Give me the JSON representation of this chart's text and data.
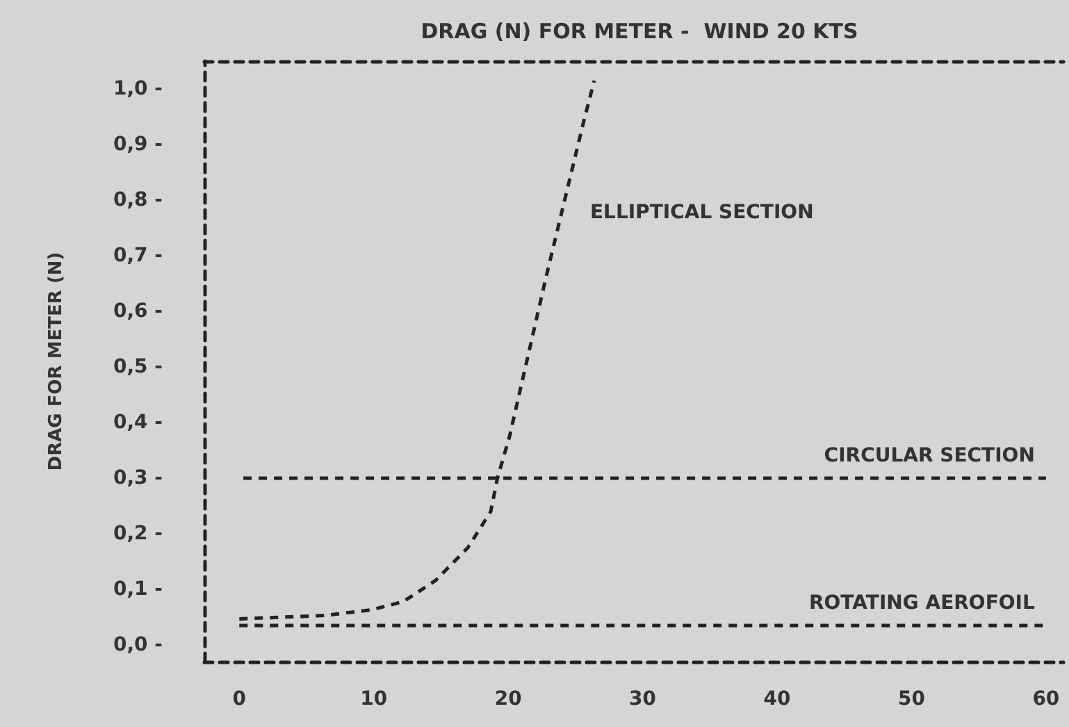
{
  "chart_data": {
    "type": "line",
    "title": "DRAG (N) FOR METER -  WIND 20 KTS",
    "ylabel": "DRAG FOR METER (N)",
    "line_style": "dashed",
    "marker": "none",
    "grid": false,
    "xlim": [
      -2.6,
      61.3
    ],
    "xticks": [
      0,
      10,
      20,
      30,
      40,
      50,
      60
    ],
    "ylim": [
      -0.03,
      1.05
    ],
    "yticks": [
      {
        "value": 0,
        "label": "0,0 -"
      },
      {
        "value": 0.1,
        "label": "0,1 -"
      },
      {
        "value": 0.2,
        "label": "0,2 -"
      },
      {
        "value": 0.3,
        "label": "0,3 -"
      },
      {
        "value": 0.4,
        "label": "0,4 -"
      },
      {
        "value": 0.5,
        "label": "0,5 -"
      },
      {
        "value": 0.6,
        "label": "0,6 -"
      },
      {
        "value": 0.7,
        "label": "0,7 -"
      },
      {
        "value": 0.8,
        "label": "0,8 -"
      },
      {
        "value": 0.9,
        "label": "0,9 -"
      },
      {
        "value": 1,
        "label": "1,0 -"
      }
    ],
    "series": [
      {
        "name": "ELLIPTICAL SECTION",
        "color": "#222222",
        "x": [
          0,
          6.3,
          9.8,
          12.2,
          14.6,
          17,
          18.7,
          19.2,
          20.1,
          22.8,
          24.6,
          25.6,
          26.4
        ],
        "values": [
          0.047,
          0.053,
          0.063,
          0.078,
          0.116,
          0.175,
          0.24,
          0.3,
          0.375,
          0.66,
          0.84,
          0.94,
          1.015
        ]
      },
      {
        "name": "CIRCULAR SECTION",
        "color": "#222222",
        "x": [
          0.3,
          60
        ],
        "values": [
          0.3,
          0.3
        ]
      },
      {
        "name": "ROTATING AEROFOIL",
        "color": "#222222",
        "x": [
          0,
          60
        ],
        "values": [
          0.035,
          0.035
        ]
      }
    ]
  }
}
